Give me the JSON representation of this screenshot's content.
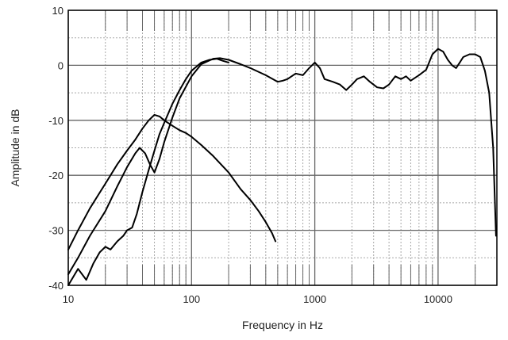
{
  "chart_data": {
    "type": "line",
    "title": "",
    "xlabel": "Frequency in Hz",
    "ylabel": "Amplitude in dB",
    "xscale": "log",
    "xlim": [
      10,
      30000
    ],
    "ylim": [
      -40,
      10
    ],
    "grid": true,
    "legend": "none",
    "line_color": "#000000",
    "grid_color": "#a8a8a8",
    "x_ticks": [
      {
        "value": 10,
        "label": "10"
      },
      {
        "value": 100,
        "label": "100"
      },
      {
        "value": 1000,
        "label": "1000"
      },
      {
        "value": 10000,
        "label": "10000"
      }
    ],
    "y_ticks": [
      {
        "value": 10,
        "label": "10"
      },
      {
        "value": 0,
        "label": "0"
      },
      {
        "value": -10,
        "label": "-10"
      },
      {
        "value": -20,
        "label": "-20"
      },
      {
        "value": -30,
        "label": "-30"
      },
      {
        "value": -40,
        "label": "-40"
      }
    ],
    "series": [
      {
        "points": [
          [
            10,
            -33.5
          ],
          [
            12,
            -30
          ],
          [
            15,
            -26
          ],
          [
            20,
            -21.5
          ],
          [
            25,
            -18
          ],
          [
            30,
            -15.5
          ],
          [
            35,
            -13.5
          ],
          [
            40,
            -11.5
          ],
          [
            45,
            -10
          ],
          [
            50,
            -9
          ],
          [
            55,
            -9.3
          ],
          [
            60,
            -10
          ],
          [
            70,
            -11
          ],
          [
            80,
            -11.8
          ],
          [
            90,
            -12.3
          ],
          [
            100,
            -13
          ],
          [
            120,
            -14.5
          ],
          [
            150,
            -16.5
          ],
          [
            200,
            -19.5
          ],
          [
            250,
            -22.5
          ],
          [
            300,
            -24.5
          ],
          [
            350,
            -26.5
          ],
          [
            400,
            -28.5
          ],
          [
            450,
            -30.5
          ],
          [
            480,
            -32
          ]
        ]
      },
      {
        "points": [
          [
            10,
            -38
          ],
          [
            12,
            -35
          ],
          [
            15,
            -31
          ],
          [
            20,
            -26.5
          ],
          [
            25,
            -22
          ],
          [
            30,
            -18.5
          ],
          [
            35,
            -16
          ],
          [
            38,
            -15
          ],
          [
            42,
            -16
          ],
          [
            46,
            -18
          ],
          [
            50,
            -19.5
          ],
          [
            55,
            -17
          ],
          [
            60,
            -14
          ],
          [
            70,
            -9.5
          ],
          [
            80,
            -6
          ],
          [
            100,
            -2
          ],
          [
            120,
            0.2
          ],
          [
            150,
            1.2
          ],
          [
            170,
            1.3
          ],
          [
            200,
            1
          ],
          [
            250,
            0.2
          ],
          [
            300,
            -0.5
          ],
          [
            400,
            -1.8
          ],
          [
            500,
            -3
          ],
          [
            550,
            -2.8
          ],
          [
            600,
            -2.5
          ],
          [
            700,
            -1.5
          ],
          [
            800,
            -1.8
          ],
          [
            900,
            -0.5
          ],
          [
            1000,
            0.5
          ],
          [
            1100,
            -0.5
          ],
          [
            1200,
            -2.5
          ],
          [
            1400,
            -3
          ],
          [
            1600,
            -3.5
          ],
          [
            1800,
            -4.5
          ],
          [
            2000,
            -3.5
          ],
          [
            2200,
            -2.5
          ],
          [
            2500,
            -2
          ],
          [
            2800,
            -3
          ],
          [
            3200,
            -4
          ],
          [
            3600,
            -4.2
          ],
          [
            4000,
            -3.5
          ],
          [
            4500,
            -2
          ],
          [
            5000,
            -2.5
          ],
          [
            5500,
            -2
          ],
          [
            6000,
            -2.8
          ],
          [
            7000,
            -1.8
          ],
          [
            8000,
            -0.8
          ],
          [
            9000,
            2
          ],
          [
            10000,
            3
          ],
          [
            11000,
            2.5
          ],
          [
            12000,
            1
          ],
          [
            13000,
            0
          ],
          [
            14000,
            -0.5
          ],
          [
            15000,
            0.5
          ],
          [
            16000,
            1.5
          ],
          [
            18000,
            2
          ],
          [
            20000,
            2
          ],
          [
            22000,
            1.5
          ],
          [
            24000,
            -1
          ],
          [
            26000,
            -5
          ],
          [
            28000,
            -15
          ],
          [
            29500,
            -31
          ]
        ]
      },
      {
        "points": [
          [
            10,
            -40
          ],
          [
            12,
            -37
          ],
          [
            14,
            -39
          ],
          [
            16,
            -36
          ],
          [
            18,
            -34
          ],
          [
            20,
            -33
          ],
          [
            22,
            -33.5
          ],
          [
            25,
            -32
          ],
          [
            28,
            -31
          ],
          [
            30,
            -30
          ],
          [
            33,
            -29.5
          ],
          [
            36,
            -27
          ],
          [
            40,
            -23
          ],
          [
            45,
            -19
          ],
          [
            50,
            -15.5
          ],
          [
            55,
            -12.5
          ],
          [
            60,
            -10.5
          ],
          [
            70,
            -7
          ],
          [
            80,
            -4.5
          ],
          [
            90,
            -2.5
          ],
          [
            100,
            -1
          ],
          [
            120,
            0.5
          ],
          [
            140,
            1
          ],
          [
            160,
            1.2
          ],
          [
            180,
            0.8
          ],
          [
            200,
            0.5
          ]
        ]
      }
    ]
  }
}
